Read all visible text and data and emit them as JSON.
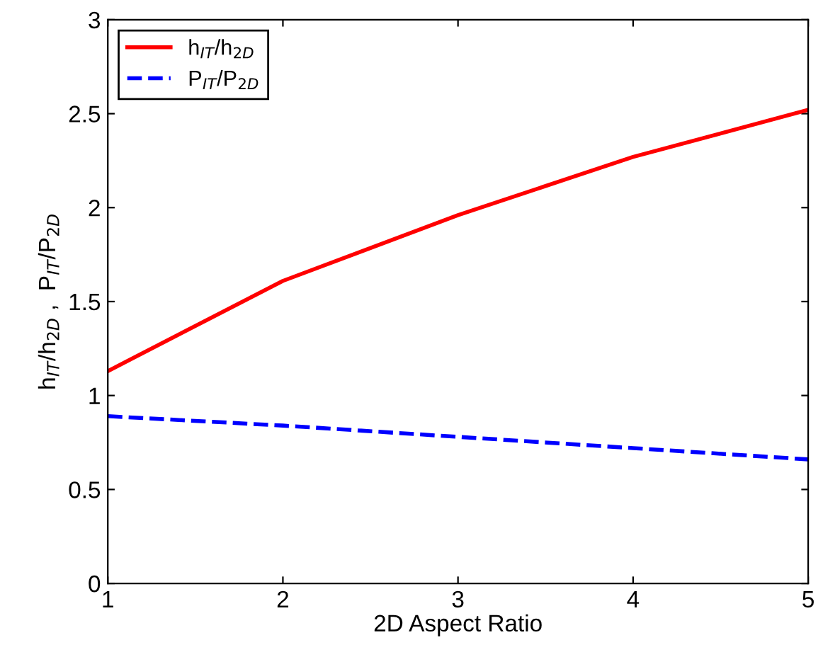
{
  "chart_data": {
    "type": "line",
    "xlabel": "2D Aspect Ratio",
    "ylabel": "h$_{IT}$/h$_{2D}$ ,  P$_{IT}$/P$_{2D}$",
    "x": [
      1,
      2,
      3,
      4,
      5
    ],
    "series": [
      {
        "name": "h$_{IT}$/h$_{2D}$",
        "color": "#ff0000",
        "values": [
          1.13,
          1.61,
          1.96,
          2.27,
          2.52
        ],
        "line_style": "solid"
      },
      {
        "name": "P$_{IT}$/P$_{2D}$",
        "color": "#0000ff",
        "values": [
          0.89,
          0.84,
          0.78,
          0.72,
          0.66
        ],
        "line_style": "dashed"
      }
    ],
    "xlim": [
      1,
      5
    ],
    "xticks": [
      1,
      2,
      3,
      4,
      5
    ],
    "ylim": [
      0,
      3
    ],
    "yticks": [
      0,
      0.5,
      1,
      1.5,
      2,
      2.5,
      3
    ],
    "grid": false,
    "legend": "top left",
    "marker": "none"
  }
}
